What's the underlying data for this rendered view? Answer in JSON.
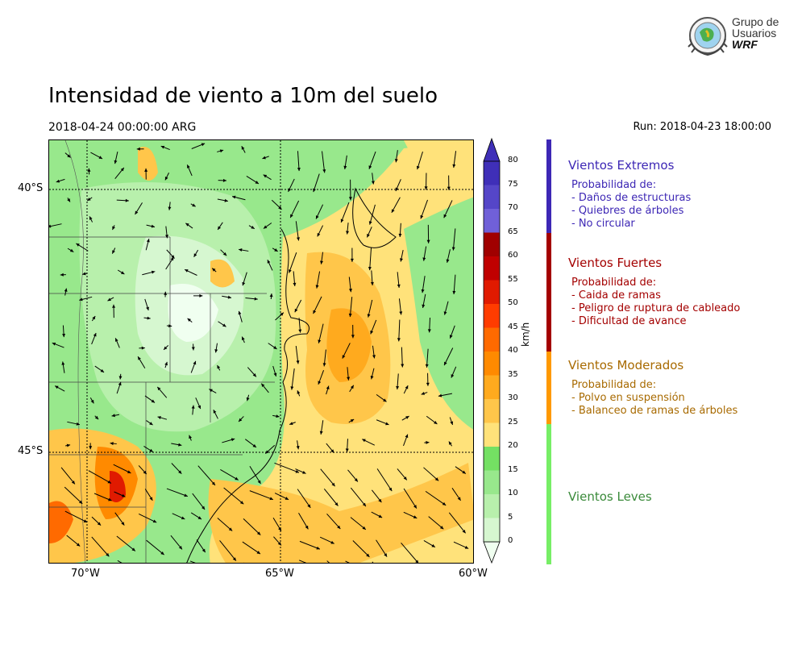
{
  "title": "Intensidad de viento a 10m del suelo",
  "valid_time": "2018-04-24 00:00:00 ARG",
  "run_time": "Run: 2018-04-23 18:00:00",
  "logo": {
    "line1": "Grupo de",
    "line2": "Usuarios",
    "line3": "WRF",
    "icon": "globe-seal-icon"
  },
  "map": {
    "lat_labels": [
      "40°S",
      "45°S"
    ],
    "lon_labels": [
      "70°W",
      "65°W",
      "60°W"
    ],
    "graticule": "dotted",
    "field": "wind speed 10m",
    "vectors": "wind direction arrows"
  },
  "colorbar": {
    "units": "km/h",
    "ticks": [
      "0",
      "5",
      "10",
      "15",
      "20",
      "25",
      "30",
      "35",
      "40",
      "45",
      "50",
      "55",
      "60",
      "65",
      "70",
      "75",
      "80"
    ],
    "colors": [
      "#f0fff0",
      "#d6f7d0",
      "#b8f0ac",
      "#98e88c",
      "#74e063",
      "#ffe27a",
      "#ffc64a",
      "#ffaa1e",
      "#ff8a00",
      "#ff6a00",
      "#ff3c00",
      "#e01a00",
      "#c00000",
      "#a00000",
      "#7060d8",
      "#5546c8",
      "#3f2fb8"
    ],
    "extend": "both"
  },
  "categories": [
    {
      "title": "Vientos Extremos",
      "color": "#3d27b5",
      "heading": "Probabilidad de:",
      "items": [
        "- Daños de estructuras",
        "- Quiebres de árboles",
        "- No circular"
      ]
    },
    {
      "title": "Vientos Fuertes",
      "color": "#a40000",
      "heading": "Probabilidad de:",
      "items": [
        "- Caida de ramas",
        "- Peligro de ruptura de cableado",
        "- Dificultad de avance"
      ]
    },
    {
      "title": "Vientos Moderados",
      "color": "#a86a00",
      "heading": "Probabilidad de:",
      "items": [
        "- Polvo en suspensión",
        "- Balanceo de ramas de árboles"
      ]
    },
    {
      "title": "Vientos Leves",
      "color": "#3a8a3a",
      "heading": "",
      "items": []
    }
  ],
  "category_bar_colors": [
    "#3d27b5",
    "#a40000",
    "#ff9900",
    "#77ee66"
  ]
}
